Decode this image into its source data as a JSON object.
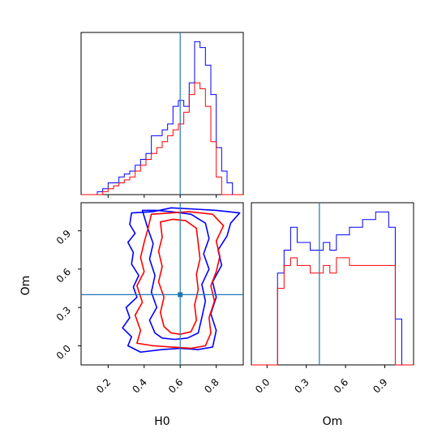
{
  "chart_data": {
    "type": "corner",
    "parameters": [
      "H0",
      "Om"
    ],
    "truth": {
      "H0": 0.6,
      "Om": 0.4
    },
    "truth_color": "#1f77b4",
    "series_colors": {
      "red": "#ff0000",
      "blue": "#0000ff"
    },
    "hist_H0": {
      "xlim": [
        0.05,
        0.95
      ],
      "bin_edges": [
        0.05,
        0.08,
        0.11,
        0.14,
        0.17,
        0.2,
        0.23,
        0.26,
        0.29,
        0.32,
        0.35,
        0.38,
        0.41,
        0.44,
        0.47,
        0.5,
        0.53,
        0.56,
        0.59,
        0.62,
        0.65,
        0.68,
        0.71,
        0.74,
        0.77,
        0.8,
        0.83,
        0.86,
        0.89,
        0.92,
        0.95
      ],
      "blue_counts": [
        0,
        0,
        0,
        0.5,
        1,
        2,
        2,
        3,
        3.5,
        4,
        5,
        6,
        7,
        10,
        10,
        11,
        12,
        15,
        16,
        15,
        19,
        26,
        25,
        22,
        17,
        8,
        4,
        2,
        0,
        0
      ],
      "red_counts": [
        0,
        0,
        0,
        0,
        0.5,
        1,
        1.5,
        2,
        2.5,
        3,
        4,
        5,
        6,
        7,
        8,
        9,
        10,
        11,
        12,
        14,
        17,
        19,
        18,
        15,
        9,
        3,
        0,
        0,
        0,
        0
      ]
    },
    "hist_Om": {
      "xlim": [
        -0.12,
        1.12
      ],
      "x_ticks": [
        0.0,
        0.3,
        0.6,
        0.9
      ],
      "x_tick_labels": [
        "0.0",
        "0.3",
        "0.6",
        "0.9"
      ],
      "bin_edges": [
        -0.12,
        -0.07,
        -0.02,
        0.03,
        0.08,
        0.13,
        0.18,
        0.23,
        0.28,
        0.33,
        0.38,
        0.43,
        0.48,
        0.53,
        0.58,
        0.63,
        0.68,
        0.73,
        0.78,
        0.83,
        0.88,
        0.93,
        0.98,
        1.03,
        1.08,
        1.12
      ],
      "blue_counts": [
        0,
        0,
        0,
        0,
        12,
        15,
        18,
        16,
        16,
        15,
        15,
        16,
        15,
        17,
        17,
        18,
        18,
        19,
        19,
        20,
        20,
        18,
        6,
        0,
        0
      ],
      "red_counts": [
        0,
        0,
        0,
        0,
        10,
        13,
        14,
        13,
        13,
        12,
        12,
        13,
        12,
        14,
        14,
        13,
        13,
        13,
        13,
        13,
        13,
        13,
        0,
        0,
        0
      ]
    },
    "scatter_H0_Om": {
      "xlim": [
        0.05,
        0.95
      ],
      "ylim": [
        -0.15,
        1.12
      ],
      "x_ticks": [
        0.2,
        0.4,
        0.6,
        0.8
      ],
      "x_tick_labels": [
        "0.2",
        "0.4",
        "0.6",
        "0.8"
      ],
      "y_ticks": [
        0.0,
        0.3,
        0.6,
        0.9
      ],
      "y_tick_labels": [
        "0.0",
        "0.3",
        "0.6",
        "0.9"
      ],
      "blue_contours": [
        [
          [
            0.33,
            1.04
          ],
          [
            0.32,
            0.95
          ],
          [
            0.35,
            0.88
          ],
          [
            0.31,
            0.81
          ],
          [
            0.34,
            0.73
          ],
          [
            0.33,
            0.64
          ],
          [
            0.37,
            0.55
          ],
          [
            0.34,
            0.46
          ],
          [
            0.36,
            0.38
          ],
          [
            0.3,
            0.3
          ],
          [
            0.32,
            0.22
          ],
          [
            0.28,
            0.14
          ],
          [
            0.33,
            0.07
          ],
          [
            0.31,
            0.0
          ],
          [
            0.38,
            -0.05
          ],
          [
            0.5,
            -0.03
          ],
          [
            0.6,
            -0.02
          ],
          [
            0.7,
            -0.03
          ],
          [
            0.78,
            -0.01
          ],
          [
            0.8,
            0.12
          ],
          [
            0.77,
            0.25
          ],
          [
            0.8,
            0.38
          ],
          [
            0.78,
            0.5
          ],
          [
            0.83,
            0.63
          ],
          [
            0.81,
            0.75
          ],
          [
            0.86,
            0.86
          ],
          [
            0.88,
            0.96
          ],
          [
            0.93,
            1.04
          ],
          [
            0.8,
            1.06
          ],
          [
            0.68,
            1.07
          ],
          [
            0.55,
            1.08
          ],
          [
            0.45,
            1.05
          ],
          [
            0.33,
            1.04
          ]
        ],
        [
          [
            0.39,
            1.06
          ],
          [
            0.42,
            0.92
          ],
          [
            0.45,
            0.8
          ],
          [
            0.43,
            0.68
          ],
          [
            0.46,
            0.55
          ],
          [
            0.44,
            0.42
          ],
          [
            0.47,
            0.3
          ],
          [
            0.43,
            0.2
          ],
          [
            0.46,
            0.1
          ],
          [
            0.5,
            0.06
          ],
          [
            0.57,
            0.05
          ],
          [
            0.64,
            0.06
          ],
          [
            0.7,
            0.1
          ],
          [
            0.72,
            0.22
          ],
          [
            0.74,
            0.35
          ],
          [
            0.72,
            0.48
          ],
          [
            0.76,
            0.6
          ],
          [
            0.73,
            0.72
          ],
          [
            0.76,
            0.84
          ],
          [
            0.74,
            0.96
          ],
          [
            0.66,
            1.03
          ],
          [
            0.55,
            1.05
          ],
          [
            0.47,
            1.06
          ],
          [
            0.39,
            1.06
          ]
        ]
      ],
      "red_contours": [
        [
          [
            0.44,
            1.03
          ],
          [
            0.42,
            0.91
          ],
          [
            0.4,
            0.81
          ],
          [
            0.38,
            0.69
          ],
          [
            0.4,
            0.58
          ],
          [
            0.36,
            0.47
          ],
          [
            0.39,
            0.34
          ],
          [
            0.35,
            0.24
          ],
          [
            0.38,
            0.12
          ],
          [
            0.36,
            0.02
          ],
          [
            0.45,
            0.0
          ],
          [
            0.55,
            -0.01
          ],
          [
            0.66,
            -0.02
          ],
          [
            0.74,
            0.0
          ],
          [
            0.77,
            0.1
          ],
          [
            0.76,
            0.22
          ],
          [
            0.79,
            0.35
          ],
          [
            0.77,
            0.47
          ],
          [
            0.8,
            0.58
          ],
          [
            0.82,
            0.7
          ],
          [
            0.8,
            0.82
          ],
          [
            0.84,
            0.94
          ],
          [
            0.78,
            1.03
          ],
          [
            0.65,
            1.05
          ],
          [
            0.55,
            1.04
          ],
          [
            0.44,
            1.03
          ]
        ],
        [
          [
            0.49,
            0.97
          ],
          [
            0.5,
            0.85
          ],
          [
            0.48,
            0.74
          ],
          [
            0.5,
            0.62
          ],
          [
            0.48,
            0.5
          ],
          [
            0.51,
            0.38
          ],
          [
            0.49,
            0.26
          ],
          [
            0.51,
            0.15
          ],
          [
            0.55,
            0.1
          ],
          [
            0.6,
            0.09
          ],
          [
            0.66,
            0.11
          ],
          [
            0.69,
            0.2
          ],
          [
            0.68,
            0.32
          ],
          [
            0.7,
            0.44
          ],
          [
            0.69,
            0.56
          ],
          [
            0.71,
            0.68
          ],
          [
            0.7,
            0.8
          ],
          [
            0.69,
            0.92
          ],
          [
            0.63,
            0.98
          ],
          [
            0.56,
            0.99
          ],
          [
            0.49,
            0.97
          ]
        ]
      ]
    },
    "xlabels": [
      "H0",
      "Om"
    ],
    "ylabel": "Om"
  }
}
